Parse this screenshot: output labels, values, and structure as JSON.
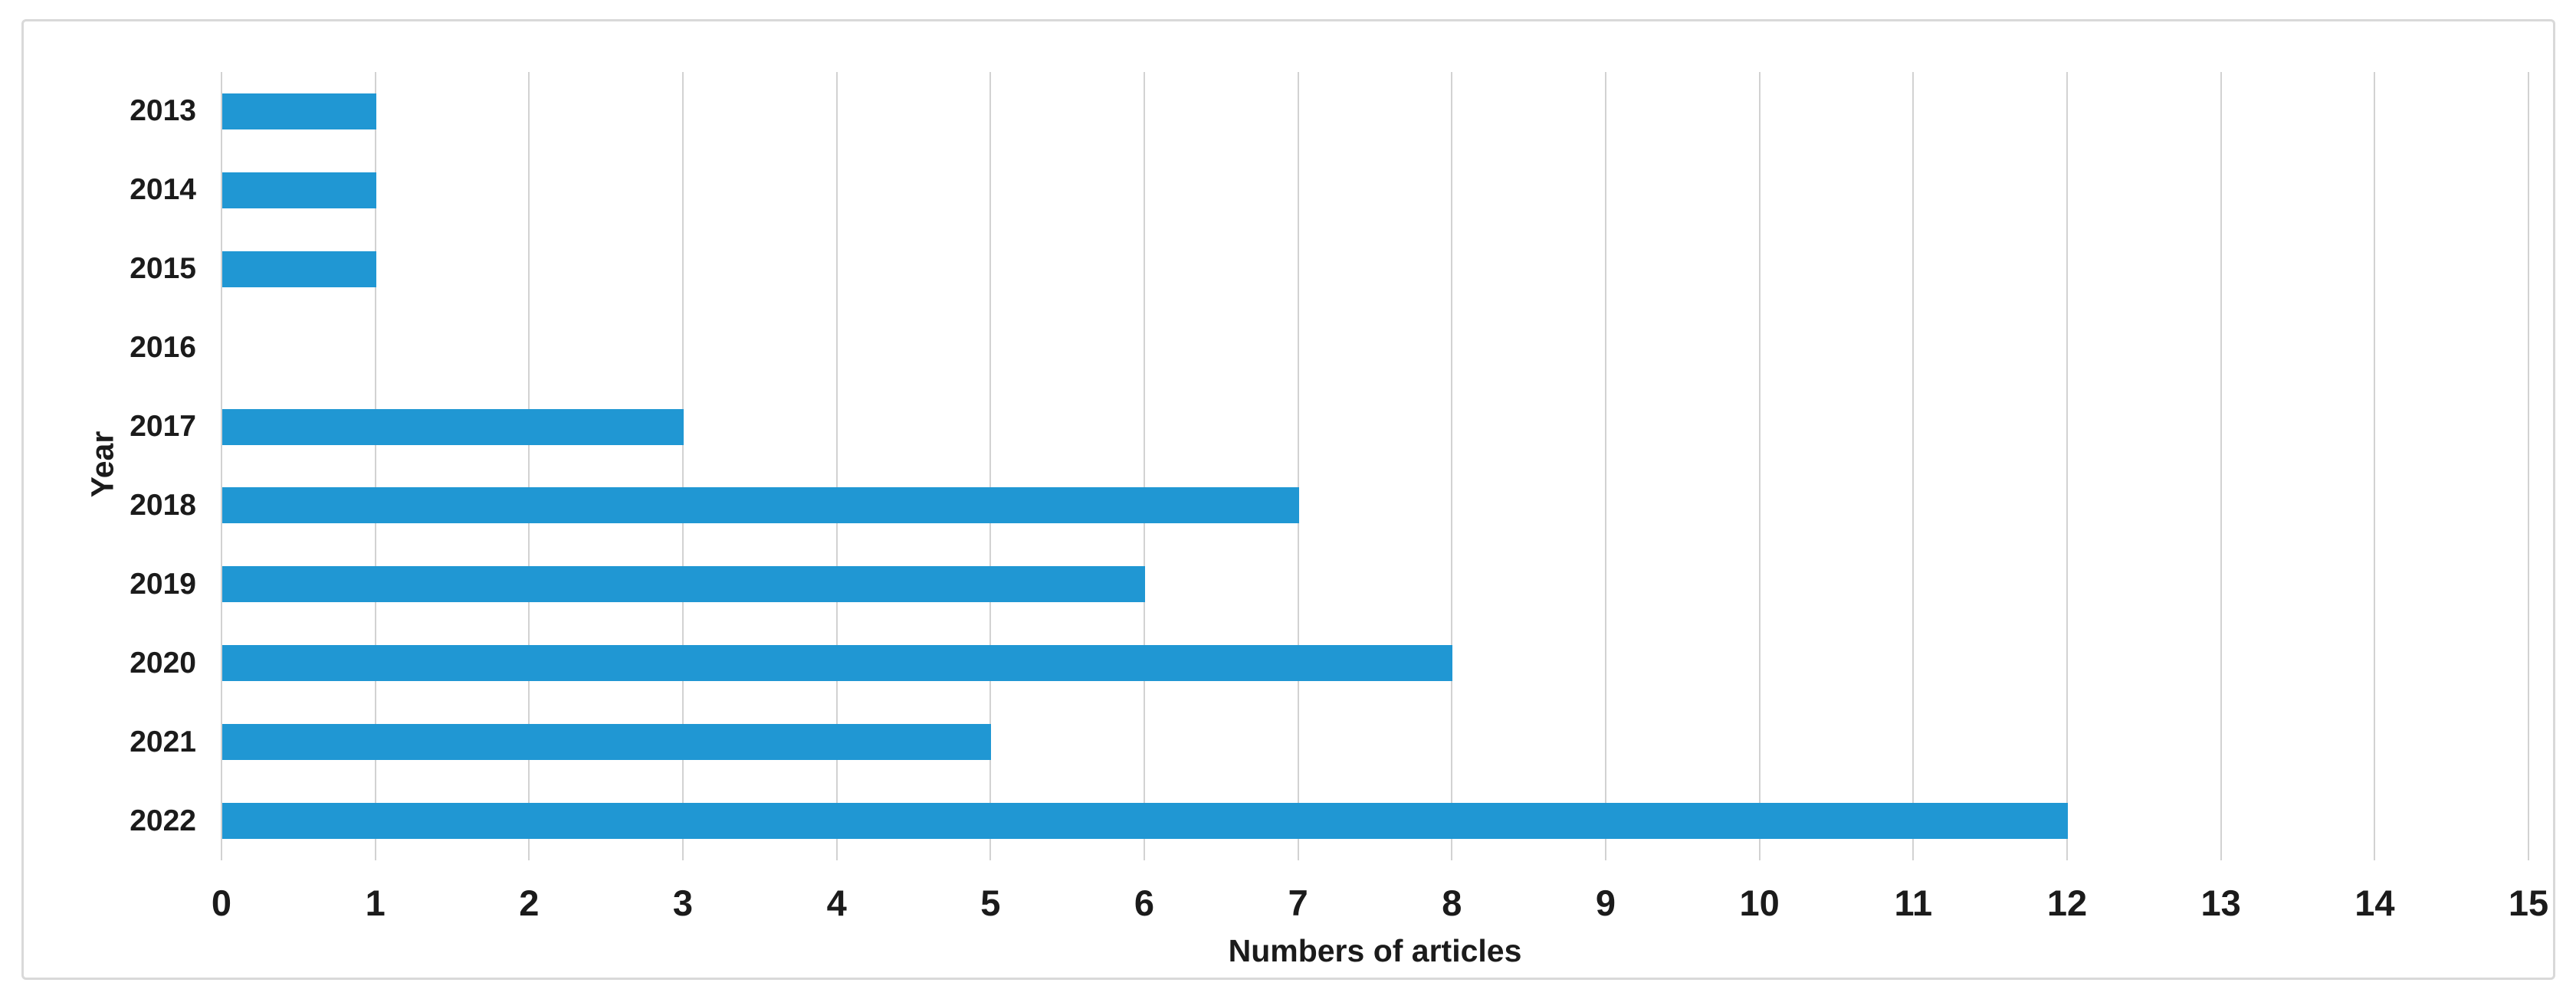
{
  "chart_data": {
    "type": "bar",
    "orientation": "horizontal",
    "title": "",
    "categories": [
      "2013",
      "2014",
      "2015",
      "2016",
      "2017",
      "2018",
      "2019",
      "2020",
      "2021",
      "2022"
    ],
    "values": [
      1,
      1,
      1,
      0,
      3,
      7,
      6,
      8,
      5,
      12
    ],
    "xlabel": "Numbers of articles",
    "ylabel": "Year",
    "xlim": [
      0,
      15
    ],
    "xticks": [
      0,
      1,
      2,
      3,
      4,
      5,
      6,
      7,
      8,
      9,
      10,
      11,
      12,
      13,
      14,
      15
    ],
    "grid": "vertical",
    "legend": "none",
    "bar_color": "#2097d3",
    "gridline_color": "#d2d2d2",
    "frame_border_color": "#d9d9d9",
    "text_color": "#1b1b1b",
    "background_color": "#ffffff"
  }
}
